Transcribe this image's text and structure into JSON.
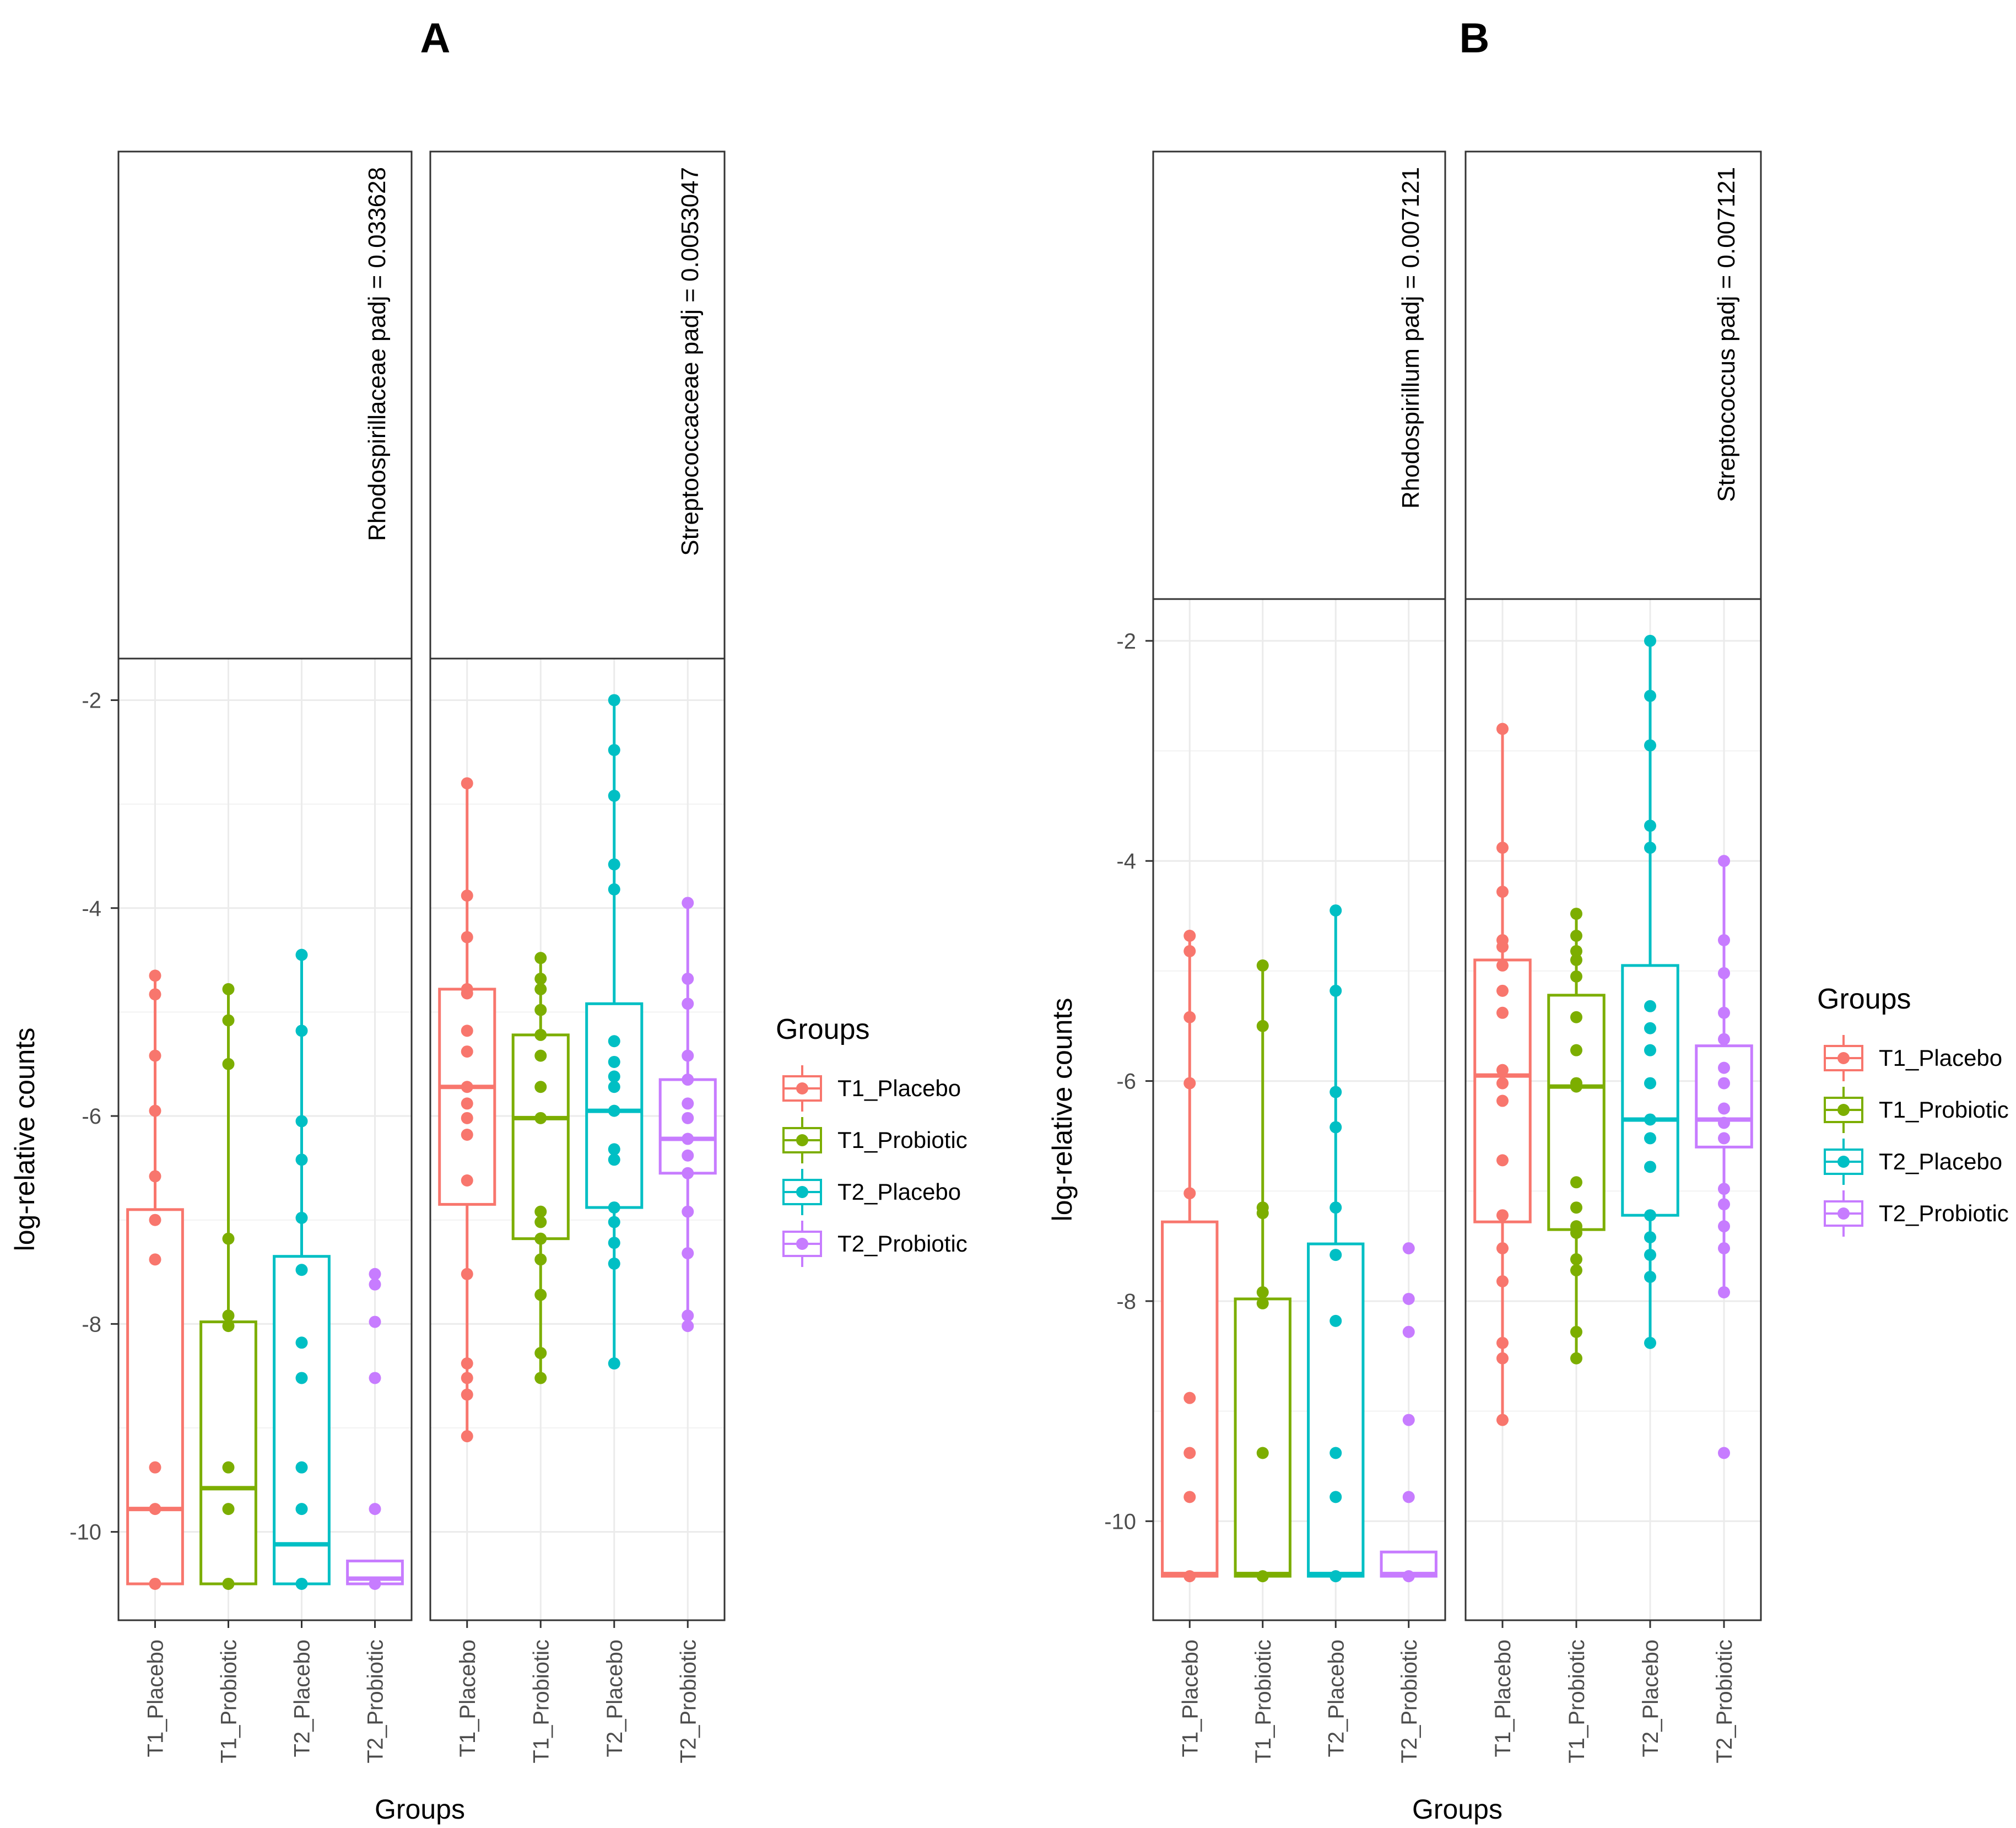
{
  "figure": {
    "panel_labels": [
      "A",
      "B"
    ]
  },
  "chart_data": [
    {
      "type": "box",
      "panel": "A",
      "facets": [
        {
          "strip": "Rhodospirillaceae padj = 0.033628",
          "groups": [
            {
              "name": "T1_Placebo",
              "box": {
                "q1": -10.5,
                "median": -9.78,
                "q3": -6.9,
                "whisker_low": -10.5,
                "whisker_high": -4.65
              },
              "points": [
                -4.65,
                -4.83,
                -5.42,
                -5.95,
                -6.58,
                -7.0,
                -7.38,
                -9.38,
                -9.78,
                -10.5
              ]
            },
            {
              "name": "T1_Probiotic",
              "box": {
                "q1": -10.5,
                "median": -9.58,
                "q3": -7.98,
                "whisker_low": -10.5,
                "whisker_high": -4.78
              },
              "points": [
                -4.78,
                -5.08,
                -5.5,
                -7.18,
                -7.92,
                -8.02,
                -9.38,
                -9.78,
                -10.5
              ]
            },
            {
              "name": "T2_Placebo",
              "box": {
                "q1": -10.5,
                "median": -10.12,
                "q3": -7.35,
                "whisker_low": -10.5,
                "whisker_high": -4.45
              },
              "points": [
                -4.45,
                -5.18,
                -6.05,
                -6.42,
                -6.98,
                -7.48,
                -8.18,
                -8.52,
                -9.38,
                -9.78,
                -10.5
              ]
            },
            {
              "name": "T2_Probiotic",
              "box": {
                "q1": -10.5,
                "median": -10.45,
                "q3": -10.28,
                "whisker_low": -10.5,
                "whisker_high": -10.28
              },
              "points": [
                -7.52,
                -7.62,
                -7.98,
                -8.52,
                -9.78,
                -10.5
              ]
            }
          ]
        },
        {
          "strip": "Streptococcaceae padj = 0.0053047",
          "groups": [
            {
              "name": "T1_Placebo",
              "box": {
                "q1": -6.85,
                "median": -5.72,
                "q3": -4.78,
                "whisker_low": -9.08,
                "whisker_high": -2.8
              },
              "points": [
                -2.8,
                -3.88,
                -4.28,
                -4.78,
                -4.82,
                -5.18,
                -5.38,
                -5.72,
                -5.88,
                -6.02,
                -6.18,
                -6.62,
                -7.52,
                -8.38,
                -8.52,
                -8.68,
                -9.08
              ]
            },
            {
              "name": "T1_Probiotic",
              "box": {
                "q1": -7.18,
                "median": -6.02,
                "q3": -5.22,
                "whisker_low": -8.52,
                "whisker_high": -4.48
              },
              "points": [
                -4.48,
                -4.68,
                -4.78,
                -4.98,
                -5.22,
                -5.42,
                -5.72,
                -6.02,
                -6.92,
                -7.02,
                -7.18,
                -7.38,
                -7.72,
                -8.28,
                -8.52
              ]
            },
            {
              "name": "T2_Placebo",
              "box": {
                "q1": -6.88,
                "median": -5.95,
                "q3": -4.92,
                "whisker_low": -8.38,
                "whisker_high": -2.0
              },
              "points": [
                -2.0,
                -2.48,
                -2.92,
                -3.58,
                -3.82,
                -5.28,
                -5.48,
                -5.62,
                -5.72,
                -5.95,
                -6.32,
                -6.42,
                -6.88,
                -7.02,
                -7.22,
                -7.42,
                -8.38
              ]
            },
            {
              "name": "T2_Probiotic",
              "box": {
                "q1": -6.55,
                "median": -6.22,
                "q3": -5.65,
                "whisker_low": -8.02,
                "whisker_high": -3.95
              },
              "points": [
                -3.95,
                -4.68,
                -4.92,
                -5.42,
                -5.65,
                -5.88,
                -6.02,
                -6.22,
                -6.38,
                -6.55,
                -6.92,
                -7.32,
                -7.92,
                -8.02
              ]
            }
          ]
        }
      ],
      "ylabel": "log-relative counts",
      "xlabel": "Groups",
      "yticks": [
        -2,
        -4,
        -6,
        -8,
        -10
      ],
      "ylim": [
        -10.85,
        -1.6
      ],
      "legend": {
        "title": "Groups",
        "entries": [
          "T1_Placebo",
          "T1_Probiotic",
          "T2_Placebo",
          "T2_Probiotic"
        ],
        "placement": "right"
      }
    },
    {
      "type": "box",
      "panel": "B",
      "facets": [
        {
          "strip": "Rhodospirillum padj = 0.007121",
          "groups": [
            {
              "name": "T1_Placebo",
              "box": {
                "q1": -10.5,
                "median": -10.48,
                "q3": -7.28,
                "whisker_low": -10.5,
                "whisker_high": -4.68
              },
              "points": [
                -4.68,
                -4.82,
                -5.42,
                -6.02,
                -7.02,
                -8.88,
                -9.38,
                -9.78,
                -10.5
              ]
            },
            {
              "name": "T1_Probiotic",
              "box": {
                "q1": -10.5,
                "median": -10.48,
                "q3": -7.98,
                "whisker_low": -10.5,
                "whisker_high": -4.95
              },
              "points": [
                -4.95,
                -5.5,
                -7.15,
                -7.2,
                -7.92,
                -8.02,
                -9.38,
                -10.5
              ]
            },
            {
              "name": "T2_Placebo",
              "box": {
                "q1": -10.5,
                "median": -10.48,
                "q3": -7.48,
                "whisker_low": -10.5,
                "whisker_high": -4.45
              },
              "points": [
                -4.45,
                -5.18,
                -6.1,
                -6.42,
                -7.15,
                -7.58,
                -8.18,
                -9.38,
                -9.78,
                -10.5
              ]
            },
            {
              "name": "T2_Probiotic",
              "box": {
                "q1": -10.5,
                "median": -10.48,
                "q3": -10.28,
                "whisker_low": -10.5,
                "whisker_high": -10.28
              },
              "points": [
                -7.52,
                -7.98,
                -8.28,
                -9.08,
                -9.78,
                -10.5
              ]
            }
          ]
        },
        {
          "strip": "Streptococcus padj = 0.007121",
          "groups": [
            {
              "name": "T1_Placebo",
              "box": {
                "q1": -7.28,
                "median": -5.95,
                "q3": -4.9,
                "whisker_low": -9.08,
                "whisker_high": -2.8
              },
              "points": [
                -2.8,
                -3.88,
                -4.28,
                -4.72,
                -4.78,
                -4.95,
                -5.18,
                -5.38,
                -5.9,
                -6.02,
                -6.18,
                -6.72,
                -7.22,
                -7.52,
                -7.82,
                -8.38,
                -8.52,
                -9.08
              ]
            },
            {
              "name": "T1_Probiotic",
              "box": {
                "q1": -7.35,
                "median": -6.05,
                "q3": -5.22,
                "whisker_low": -8.52,
                "whisker_high": -4.48
              },
              "points": [
                -4.48,
                -4.68,
                -4.82,
                -4.9,
                -5.05,
                -5.42,
                -5.72,
                -6.02,
                -6.05,
                -6.92,
                -7.15,
                -7.32,
                -7.38,
                -7.62,
                -7.72,
                -8.28,
                -8.52
              ]
            },
            {
              "name": "T2_Placebo",
              "box": {
                "q1": -7.22,
                "median": -6.35,
                "q3": -4.95,
                "whisker_low": -8.38,
                "whisker_high": -2.0
              },
              "points": [
                -2.0,
                -2.5,
                -2.95,
                -3.68,
                -3.88,
                -5.32,
                -5.52,
                -5.72,
                -6.02,
                -6.35,
                -6.52,
                -6.78,
                -7.22,
                -7.42,
                -7.58,
                -7.78,
                -8.38
              ]
            },
            {
              "name": "T2_Probiotic",
              "box": {
                "q1": -6.6,
                "median": -6.35,
                "q3": -5.68,
                "whisker_low": -7.92,
                "whisker_high": -4.0
              },
              "points": [
                -4.0,
                -4.72,
                -5.02,
                -5.38,
                -5.62,
                -5.88,
                -6.02,
                -6.25,
                -6.38,
                -6.52,
                -6.98,
                -7.12,
                -7.32,
                -7.52,
                -7.92,
                -9.38
              ]
            }
          ]
        }
      ],
      "ylabel": "log-relative counts",
      "xlabel": "Groups",
      "yticks": [
        -2,
        -4,
        -6,
        -8,
        -10
      ],
      "ylim": [
        -10.9,
        -1.62
      ],
      "legend": {
        "title": "Groups",
        "entries": [
          "T1_Placebo",
          "T1_Probiotic",
          "T2_Placebo",
          "T2_Probiotic"
        ],
        "placement": "right"
      }
    }
  ],
  "colors": {
    "T1_Placebo": "#F8766D",
    "T1_Probiotic": "#7CAE00",
    "T2_Placebo": "#00BFC4",
    "T2_Probiotic": "#C77CFF"
  }
}
